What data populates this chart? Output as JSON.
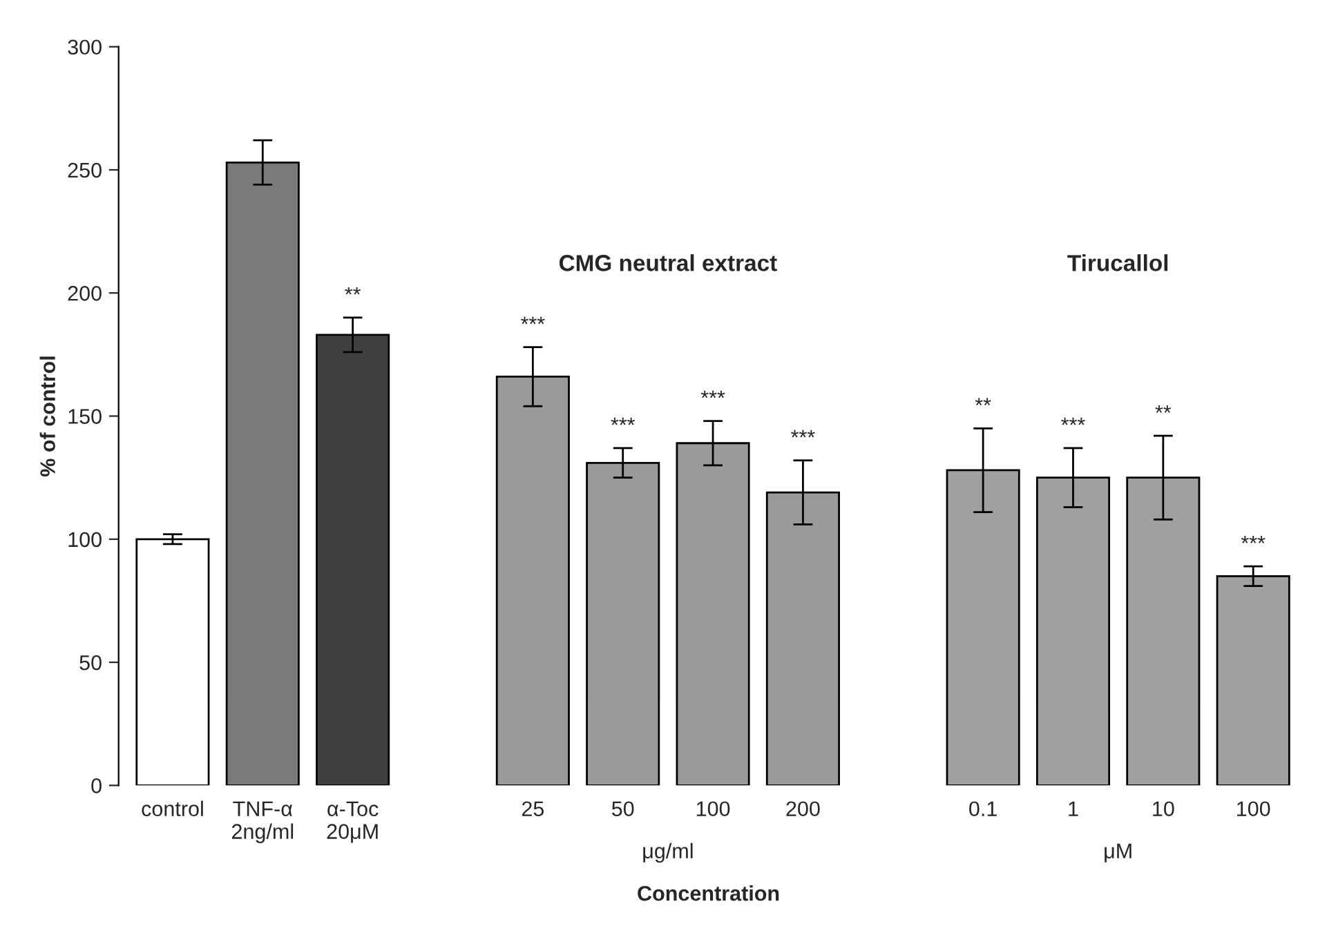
{
  "chart_data": {
    "type": "bar",
    "ylabel": "% of control",
    "xlabel": "Concentration",
    "categories": [
      "control",
      "TNF-α\n2ng/ml",
      "α-Toc\n20μM",
      null,
      "25",
      "50",
      "100",
      "200",
      null,
      "0.1",
      "1",
      "10",
      "100"
    ],
    "values": [
      100,
      253,
      183,
      null,
      166,
      131,
      139,
      119,
      null,
      128,
      125,
      125,
      85
    ],
    "errors": [
      2,
      9,
      7,
      null,
      12,
      6,
      9,
      13,
      null,
      17,
      12,
      17,
      4
    ],
    "colors": [
      "#ffffff",
      "#7a7a7a",
      "#404040",
      null,
      "#9a9a9a",
      "#9a9a9a",
      "#9a9a9a",
      "#9a9a9a",
      null,
      "#a0a0a0",
      "#a0a0a0",
      "#a0a0a0",
      "#a0a0a0"
    ],
    "ylim": [
      0,
      300
    ],
    "yticks": [
      0,
      50,
      100,
      150,
      200,
      250,
      300
    ],
    "grid": false,
    "legend": false,
    "value_labels": [
      null,
      null,
      "**",
      null,
      "***",
      "***",
      "***",
      "***",
      null,
      "**",
      "***",
      "**",
      "***"
    ],
    "annotations": [
      "CMG neutral extract",
      "μg/ml",
      "Tirucallol",
      "μM"
    ]
  }
}
